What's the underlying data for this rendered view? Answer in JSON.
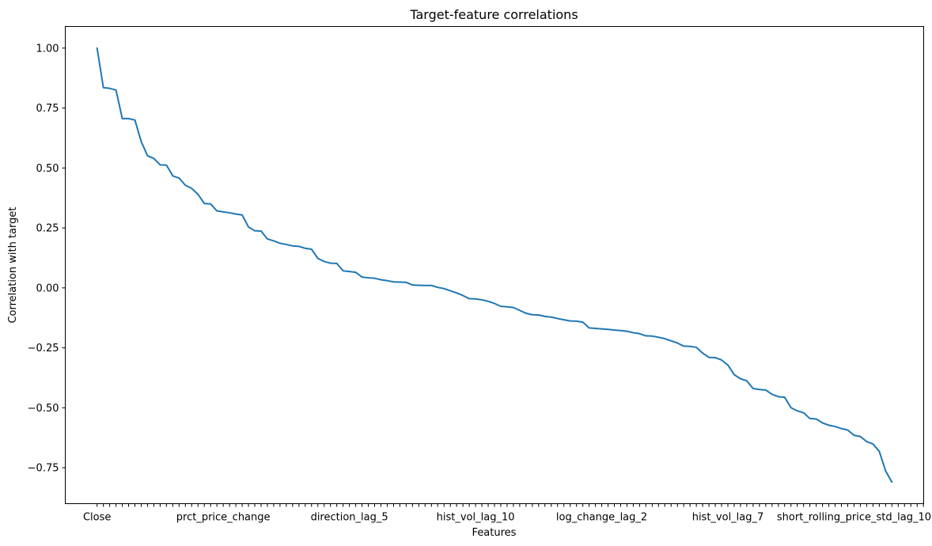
{
  "chart_data": {
    "type": "line",
    "title": "Target-feature correlations",
    "xlabel": "Features",
    "ylabel": "Correlation with target",
    "ylim": [
      -0.9,
      1.09
    ],
    "grid": false,
    "legend": "none",
    "x_tick_labels": [
      {
        "index": 0,
        "label": "Close"
      },
      {
        "index": 20,
        "label": "prct_price_change"
      },
      {
        "index": 40,
        "label": "direction_lag_5"
      },
      {
        "index": 60,
        "label": "hist_vol_lag_10"
      },
      {
        "index": 80,
        "label": "log_change_lag_2"
      },
      {
        "index": 100,
        "label": "hist_vol_lag_7"
      },
      {
        "index": 120,
        "label": "short_rolling_price_std_lag_10"
      }
    ],
    "y_ticks": [
      1.0,
      0.75,
      0.5,
      0.25,
      0.0,
      -0.25,
      -0.5,
      -0.75
    ],
    "y_tick_labels": [
      "1.00",
      "0.75",
      "0.50",
      "0.25",
      "0.00",
      "−0.25",
      "−0.50",
      "−0.75"
    ],
    "series": [
      {
        "color": "#1f77b4",
        "values": [
          1.0,
          0.835,
          0.832,
          0.825,
          0.706,
          0.706,
          0.7,
          0.61,
          0.551,
          0.54,
          0.513,
          0.512,
          0.467,
          0.458,
          0.428,
          0.415,
          0.39,
          0.352,
          0.35,
          0.321,
          0.317,
          0.313,
          0.308,
          0.304,
          0.254,
          0.238,
          0.237,
          0.204,
          0.196,
          0.186,
          0.181,
          0.175,
          0.173,
          0.165,
          0.161,
          0.123,
          0.11,
          0.103,
          0.102,
          0.071,
          0.068,
          0.065,
          0.045,
          0.042,
          0.04,
          0.034,
          0.03,
          0.025,
          0.024,
          0.023,
          0.012,
          0.011,
          0.01,
          0.01,
          0.002,
          -0.003,
          -0.012,
          -0.021,
          -0.032,
          -0.045,
          -0.046,
          -0.05,
          -0.056,
          -0.065,
          -0.077,
          -0.079,
          -0.082,
          -0.094,
          -0.106,
          -0.112,
          -0.113,
          -0.119,
          -0.122,
          -0.128,
          -0.133,
          -0.138,
          -0.139,
          -0.143,
          -0.167,
          -0.169,
          -0.171,
          -0.173,
          -0.176,
          -0.178,
          -0.181,
          -0.187,
          -0.191,
          -0.2,
          -0.201,
          -0.206,
          -0.212,
          -0.221,
          -0.23,
          -0.243,
          -0.244,
          -0.248,
          -0.272,
          -0.29,
          -0.291,
          -0.301,
          -0.322,
          -0.362,
          -0.379,
          -0.388,
          -0.42,
          -0.424,
          -0.426,
          -0.444,
          -0.454,
          -0.456,
          -0.5,
          -0.513,
          -0.521,
          -0.545,
          -0.547,
          -0.563,
          -0.573,
          -0.578,
          -0.587,
          -0.593,
          -0.615,
          -0.62,
          -0.641,
          -0.651,
          -0.682,
          -0.763,
          -0.81
        ]
      }
    ]
  }
}
